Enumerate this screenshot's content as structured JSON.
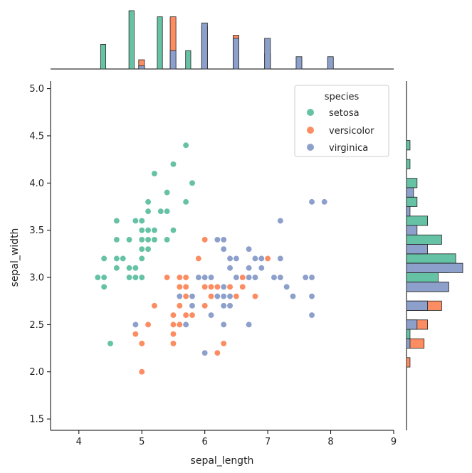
{
  "chart_data": {
    "type": "scatter",
    "subtype": "jointplot",
    "xlabel": "sepal_length",
    "ylabel": "sepal_width",
    "xlim": [
      3.55,
      9.0
    ],
    "ylim": [
      1.38,
      5.08
    ],
    "xticks": [
      4,
      5,
      6,
      7,
      8,
      9
    ],
    "xtick_labels": [
      "4",
      "5",
      "6",
      "7",
      "8",
      "9"
    ],
    "yticks": [
      1.5,
      2.0,
      2.5,
      3.0,
      3.5,
      4.0,
      4.5,
      5.0
    ],
    "ytick_labels": [
      "1.5",
      "2.0",
      "2.5",
      "3.0",
      "3.5",
      "4.0",
      "4.5",
      "5.0"
    ],
    "legend": {
      "title": "species",
      "position": "top-right",
      "entries": [
        "setosa",
        "versicolor",
        "virginica"
      ]
    },
    "series": [
      {
        "name": "setosa",
        "color": "#66c2a5",
        "points": [
          [
            5.1,
            3.5
          ],
          [
            4.9,
            3.0
          ],
          [
            4.7,
            3.2
          ],
          [
            4.6,
            3.1
          ],
          [
            5.0,
            3.6
          ],
          [
            5.4,
            3.9
          ],
          [
            4.6,
            3.4
          ],
          [
            5.0,
            3.4
          ],
          [
            4.4,
            2.9
          ],
          [
            4.9,
            3.1
          ],
          [
            5.4,
            3.7
          ],
          [
            4.8,
            3.4
          ],
          [
            4.8,
            3.0
          ],
          [
            4.3,
            3.0
          ],
          [
            5.8,
            4.0
          ],
          [
            5.7,
            4.4
          ],
          [
            5.4,
            3.9
          ],
          [
            5.1,
            3.5
          ],
          [
            5.7,
            3.8
          ],
          [
            5.1,
            3.8
          ],
          [
            5.4,
            3.4
          ],
          [
            5.1,
            3.7
          ],
          [
            4.6,
            3.6
          ],
          [
            5.1,
            3.3
          ],
          [
            4.8,
            3.4
          ],
          [
            5.0,
            3.0
          ],
          [
            5.0,
            3.4
          ],
          [
            5.2,
            3.5
          ],
          [
            5.2,
            3.4
          ],
          [
            4.7,
            3.2
          ],
          [
            4.8,
            3.1
          ],
          [
            5.4,
            3.4
          ],
          [
            5.2,
            4.1
          ],
          [
            5.5,
            4.2
          ],
          [
            4.9,
            3.1
          ],
          [
            5.0,
            3.2
          ],
          [
            5.5,
            3.5
          ],
          [
            4.9,
            3.6
          ],
          [
            4.4,
            3.0
          ],
          [
            5.1,
            3.4
          ],
          [
            5.0,
            3.5
          ],
          [
            4.5,
            2.3
          ],
          [
            4.4,
            3.2
          ],
          [
            5.0,
            3.5
          ],
          [
            5.1,
            3.8
          ],
          [
            4.8,
            3.0
          ],
          [
            5.1,
            3.8
          ],
          [
            4.6,
            3.2
          ],
          [
            5.3,
            3.7
          ],
          [
            5.0,
            3.3
          ]
        ],
        "x_hist": {
          "bins": [
            4.3,
            4.75,
            5.2,
            5.65,
            6.1
          ],
          "counts": [
            8,
            19,
            17,
            6
          ]
        },
        "y_hist": {
          "bins": [
            2.3,
            2.5,
            2.7,
            2.9,
            3.1,
            3.3,
            3.5,
            3.7,
            3.9,
            4.1,
            4.3,
            4.5
          ],
          "counts": [
            1,
            0,
            0,
            9,
            14,
            10,
            6,
            3,
            3,
            1,
            1
          ]
        }
      },
      {
        "name": "versicolor",
        "color": "#fc8d62",
        "points": [
          [
            7.0,
            3.2
          ],
          [
            6.4,
            3.2
          ],
          [
            6.9,
            3.1
          ],
          [
            5.5,
            2.3
          ],
          [
            6.5,
            2.8
          ],
          [
            5.7,
            2.8
          ],
          [
            6.3,
            3.3
          ],
          [
            4.9,
            2.4
          ],
          [
            6.6,
            2.9
          ],
          [
            5.2,
            2.7
          ],
          [
            5.0,
            2.0
          ],
          [
            5.9,
            3.0
          ],
          [
            6.0,
            2.2
          ],
          [
            6.1,
            2.9
          ],
          [
            5.6,
            2.9
          ],
          [
            6.7,
            3.1
          ],
          [
            5.6,
            3.0
          ],
          [
            5.8,
            2.7
          ],
          [
            6.2,
            2.2
          ],
          [
            5.6,
            2.5
          ],
          [
            5.9,
            3.2
          ],
          [
            6.1,
            2.8
          ],
          [
            6.3,
            2.5
          ],
          [
            6.1,
            2.8
          ],
          [
            6.4,
            2.9
          ],
          [
            6.6,
            3.0
          ],
          [
            6.8,
            2.8
          ],
          [
            6.7,
            3.0
          ],
          [
            6.0,
            2.9
          ],
          [
            5.7,
            2.6
          ],
          [
            5.5,
            2.4
          ],
          [
            5.5,
            2.4
          ],
          [
            5.8,
            2.7
          ],
          [
            6.0,
            2.7
          ],
          [
            5.4,
            3.0
          ],
          [
            6.0,
            3.4
          ],
          [
            6.7,
            3.1
          ],
          [
            6.3,
            2.3
          ],
          [
            5.6,
            3.0
          ],
          [
            5.5,
            2.5
          ],
          [
            5.5,
            2.6
          ],
          [
            6.1,
            3.0
          ],
          [
            5.8,
            2.6
          ],
          [
            5.0,
            2.3
          ],
          [
            5.6,
            2.7
          ],
          [
            5.7,
            3.0
          ],
          [
            5.7,
            2.9
          ],
          [
            6.2,
            2.9
          ],
          [
            5.1,
            2.5
          ],
          [
            5.7,
            2.8
          ]
        ],
        "x_hist": {
          "bins": [
            4.9,
            5.4,
            5.9,
            6.4,
            6.9,
            7.4
          ],
          "counts": [
            3,
            17,
            14,
            11,
            5
          ]
        },
        "y_hist": {
          "bins": [
            2.0,
            2.2,
            2.4,
            2.6,
            2.8,
            3.0,
            3.2,
            3.4
          ],
          "counts": [
            1,
            5,
            6,
            10,
            12,
            12,
            4
          ]
        }
      },
      {
        "name": "virginica",
        "color": "#8da0cb",
        "points": [
          [
            6.3,
            3.3
          ],
          [
            5.8,
            2.7
          ],
          [
            7.1,
            3.0
          ],
          [
            6.3,
            2.9
          ],
          [
            6.5,
            3.0
          ],
          [
            7.6,
            3.0
          ],
          [
            4.9,
            2.5
          ],
          [
            7.3,
            2.9
          ],
          [
            6.7,
            2.5
          ],
          [
            7.2,
            3.6
          ],
          [
            6.5,
            3.2
          ],
          [
            6.4,
            2.7
          ],
          [
            6.8,
            3.0
          ],
          [
            5.7,
            2.5
          ],
          [
            5.8,
            2.8
          ],
          [
            6.4,
            3.2
          ],
          [
            6.5,
            3.0
          ],
          [
            7.7,
            3.8
          ],
          [
            7.7,
            2.6
          ],
          [
            6.0,
            2.2
          ],
          [
            6.9,
            3.2
          ],
          [
            5.6,
            2.8
          ],
          [
            7.7,
            2.8
          ],
          [
            6.3,
            2.7
          ],
          [
            6.7,
            3.3
          ],
          [
            7.2,
            3.2
          ],
          [
            6.2,
            2.8
          ],
          [
            6.1,
            3.0
          ],
          [
            6.4,
            2.8
          ],
          [
            7.2,
            3.0
          ],
          [
            7.4,
            2.8
          ],
          [
            7.9,
            3.8
          ],
          [
            6.4,
            2.8
          ],
          [
            6.3,
            2.8
          ],
          [
            6.1,
            2.6
          ],
          [
            7.7,
            3.0
          ],
          [
            6.3,
            3.4
          ],
          [
            6.4,
            3.1
          ],
          [
            6.0,
            3.0
          ],
          [
            6.9,
            3.1
          ],
          [
            6.7,
            3.1
          ],
          [
            6.9,
            3.1
          ],
          [
            5.8,
            2.7
          ],
          [
            6.8,
            3.2
          ],
          [
            6.7,
            3.3
          ],
          [
            6.7,
            3.0
          ],
          [
            6.3,
            2.5
          ],
          [
            6.5,
            3.0
          ],
          [
            6.2,
            3.4
          ],
          [
            5.9,
            3.0
          ]
        ],
        "x_hist": {
          "bins": [
            4.9,
            5.4,
            5.9,
            6.4,
            6.9,
            7.4,
            7.9,
            8.4
          ],
          "counts": [
            1,
            6,
            15,
            10,
            10,
            4,
            4
          ]
        },
        "y_hist": {
          "bins": [
            2.2,
            2.4,
            2.6,
            2.8,
            3.0,
            3.2,
            3.4,
            3.6,
            3.8,
            4.0
          ],
          "counts": [
            1,
            3,
            6,
            12,
            16,
            6,
            3,
            1,
            2
          ]
        }
      }
    ]
  }
}
